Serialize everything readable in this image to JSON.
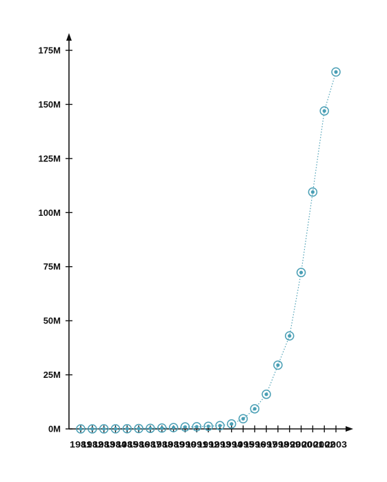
{
  "chart_data": {
    "type": "line",
    "title": "",
    "xlabel": "",
    "ylabel": "",
    "x": [
      1981,
      1982,
      1983,
      1984,
      1985,
      1986,
      1987,
      1988,
      1989,
      1990,
      1991,
      1992,
      1993,
      1994,
      1995,
      1996,
      1997,
      1998,
      1999,
      2000,
      2001,
      2002,
      2003
    ],
    "x_tick_labels": [
      "1981",
      "1982",
      "1983",
      "1984",
      "1985",
      "1986",
      "1987",
      "1988",
      "1989",
      "1990",
      "1991",
      "1992",
      "1993",
      "1994",
      "1995",
      "1996",
      "1997",
      "1998",
      "1999",
      "2000",
      "2001",
      "2002",
      "2003"
    ],
    "series": [
      {
        "values": [
          0.002,
          0.01,
          0.02,
          0.04,
          0.08,
          0.15,
          0.25,
          0.4,
          0.6,
          0.9,
          1.0,
          1.2,
          1.5,
          2.3,
          4.7,
          9.3,
          16.0,
          29.5,
          43.0,
          72.3,
          109.5,
          147.0,
          165.0
        ],
        "color": "#4a9fb5"
      }
    ],
    "ylim": [
      0,
      175
    ],
    "y_ticks": [
      0,
      25,
      50,
      75,
      100,
      125,
      150,
      175
    ],
    "y_tick_labels": [
      "0M",
      "25M",
      "50M",
      "75M",
      "100M",
      "125M",
      "150M",
      "175M"
    ],
    "xlim": [
      1981,
      2003
    ],
    "grid": false,
    "legend": "none",
    "line_style": "dotted",
    "marker": "ringed-circle"
  }
}
